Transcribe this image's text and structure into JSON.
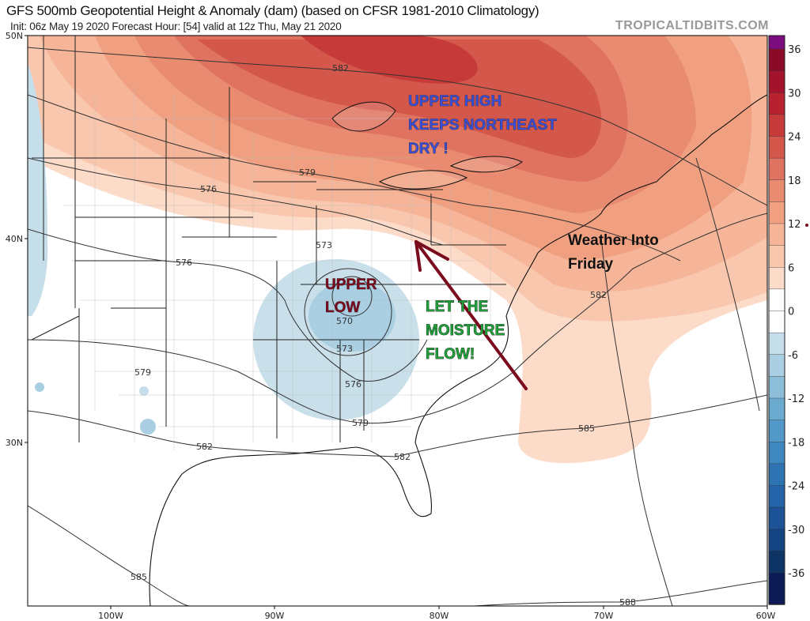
{
  "header": {
    "title": "GFS 500mb Geopotential Height & Anomaly (dam) (based on CFSR 1981-2010 Climatology)",
    "subtitle": "Init: 06z May 19 2020   Forecast Hour: [54]   valid at 12z Thu, May 21 2020",
    "brand": "TROPICALTIDBITS.COM"
  },
  "axes": {
    "lat_labels": [
      "50N",
      "40N",
      "30N"
    ],
    "lon_labels": [
      "100W",
      "90W",
      "80W",
      "70W",
      "60W"
    ]
  },
  "contours": [
    "582",
    "579",
    "576",
    "576",
    "573",
    "570",
    "573",
    "576",
    "579",
    "579",
    "582",
    "582",
    "582",
    "585",
    "585",
    "588"
  ],
  "annotations": {
    "upper_high": [
      "UPPER HIGH",
      "KEEPS NORTHEAST",
      "DRY !"
    ],
    "upper_low": [
      "UPPER",
      "LOW"
    ],
    "moisture": [
      "LET THE",
      "MOISTURE",
      "FLOW!"
    ],
    "weather": [
      "Weather Into",
      "Friday"
    ]
  },
  "colors": {
    "arrow": "#7a0c1e",
    "upper_high_text": "#3a4fd4",
    "upper_low_text": "#7a0c1e",
    "moisture_text": "#1f9e3a"
  },
  "colorbar": {
    "ticks": [
      "36",
      "30",
      "24",
      "18",
      "12",
      "6",
      "0",
      "-6",
      "-12",
      "-18",
      "-24",
      "-30",
      "-36"
    ],
    "bins": [
      "#7b0c7e",
      "#8a0a27",
      "#a3142c",
      "#b8212f",
      "#c63a39",
      "#d3574a",
      "#df7260",
      "#e88b70",
      "#f0a080",
      "#f6b598",
      "#f9c7ad",
      "#fcdbc9",
      "#ffffff",
      "#ffffff",
      "#c6deea",
      "#aacfe3",
      "#8dbed9",
      "#6babd0",
      "#5298c8",
      "#3e87bf",
      "#2e74b3",
      "#2463a8",
      "#1c5296",
      "#144381",
      "#0e3466",
      "#0c1b56"
    ]
  }
}
